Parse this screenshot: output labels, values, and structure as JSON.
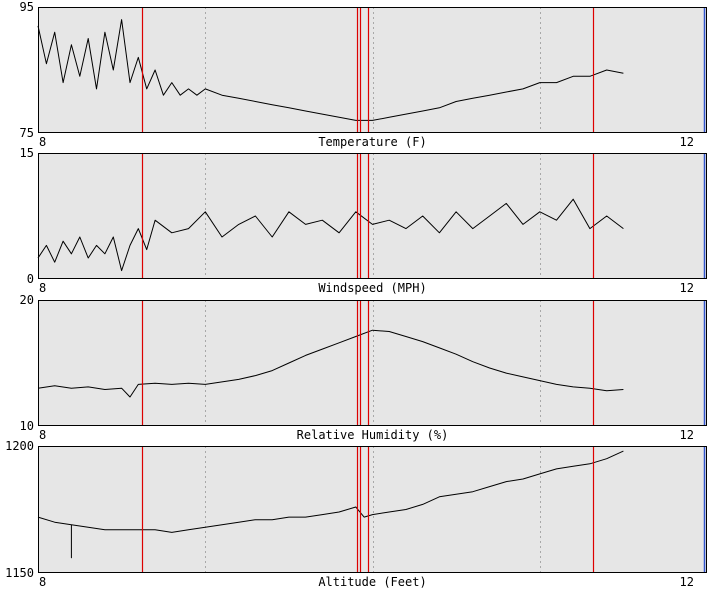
{
  "colors": {
    "plot_background": "#e6e6e6",
    "page_background": "#ffffff",
    "series_line": "#000000",
    "event_marker": "#dd0000",
    "grid_line": "#a8a8a8",
    "right_edge_accent": "#3355cc"
  },
  "event_markers_x": [
    8.623,
    9.905,
    9.925,
    9.975
  ],
  "event_marker_late_x": 11.318,
  "chart_data": [
    {
      "type": "line",
      "title": "",
      "xlabel": "Temperature (F)",
      "ylabel": "",
      "xlim": [
        8,
        12
      ],
      "ylim": [
        75,
        95
      ],
      "x_ticks": [
        "8",
        "12"
      ],
      "y_ticks": [
        "95",
        "75"
      ],
      "grid": {
        "x": [
          9,
          10,
          11
        ],
        "style": "dotted"
      },
      "series": [
        {
          "x": [
            8.0,
            8.05,
            8.1,
            8.15,
            8.2,
            8.25,
            8.3,
            8.35,
            8.4,
            8.45,
            8.5,
            8.55,
            8.6,
            8.65,
            8.7,
            8.75,
            8.8,
            8.85,
            8.9,
            8.95,
            9.0,
            9.1,
            9.2,
            9.3,
            9.4,
            9.5,
            9.6,
            9.7,
            9.8,
            9.9,
            10.0,
            10.1,
            10.2,
            10.3,
            10.4,
            10.5,
            10.6,
            10.7,
            10.8,
            10.9,
            11.0,
            11.1,
            11.2,
            11.3,
            11.4,
            11.5
          ],
          "y": [
            92,
            86,
            91,
            83,
            89,
            84,
            90,
            82,
            91,
            85,
            93,
            83,
            87,
            82,
            85,
            81,
            83,
            81,
            82,
            81,
            82,
            81,
            80.5,
            80,
            79.5,
            79,
            78.5,
            78,
            77.5,
            77,
            77,
            77.5,
            78,
            78.5,
            79,
            80,
            80.5,
            81,
            81.5,
            82,
            83,
            83,
            84,
            84,
            85,
            84.5
          ]
        }
      ]
    },
    {
      "type": "line",
      "title": "",
      "xlabel": "Windspeed (MPH)",
      "ylabel": "",
      "xlim": [
        8,
        12
      ],
      "ylim": [
        0,
        15
      ],
      "x_ticks": [
        "8",
        "12"
      ],
      "y_ticks": [
        "15",
        "0"
      ],
      "grid": {
        "x": [
          9,
          10,
          11
        ],
        "style": "dotted"
      },
      "series": [
        {
          "x": [
            8.0,
            8.05,
            8.1,
            8.15,
            8.2,
            8.25,
            8.3,
            8.35,
            8.4,
            8.45,
            8.5,
            8.55,
            8.6,
            8.65,
            8.7,
            8.8,
            8.9,
            9.0,
            9.1,
            9.2,
            9.3,
            9.4,
            9.5,
            9.6,
            9.7,
            9.8,
            9.9,
            10.0,
            10.1,
            10.2,
            10.3,
            10.4,
            10.5,
            10.6,
            10.7,
            10.8,
            10.9,
            11.0,
            11.1,
            11.2,
            11.3,
            11.4,
            11.5
          ],
          "y": [
            2.5,
            4,
            2,
            4.5,
            3,
            5,
            2.5,
            4,
            3,
            5,
            1,
            4,
            6,
            3.5,
            7,
            5.5,
            6,
            8,
            5,
            6.5,
            7.5,
            5,
            8,
            6.5,
            7,
            5.5,
            8,
            6.5,
            7,
            6,
            7.5,
            5.5,
            8,
            6,
            7.5,
            9,
            6.5,
            8,
            7,
            9.5,
            6,
            7.5,
            6
          ]
        }
      ]
    },
    {
      "type": "line",
      "title": "",
      "xlabel": "Relative Humidity (%)",
      "ylabel": "",
      "xlim": [
        8,
        12
      ],
      "ylim": [
        10,
        20
      ],
      "x_ticks": [
        "8",
        "12"
      ],
      "y_ticks": [
        "20",
        "10"
      ],
      "grid": {
        "x": [
          9,
          10,
          11
        ],
        "style": "dotted"
      },
      "series": [
        {
          "x": [
            8.0,
            8.1,
            8.2,
            8.3,
            8.4,
            8.5,
            8.55,
            8.6,
            8.7,
            8.8,
            8.9,
            9.0,
            9.1,
            9.2,
            9.3,
            9.4,
            9.5,
            9.6,
            9.7,
            9.8,
            9.9,
            10.0,
            10.1,
            10.2,
            10.3,
            10.4,
            10.5,
            10.6,
            10.7,
            10.8,
            10.9,
            11.0,
            11.1,
            11.2,
            11.3,
            11.4,
            11.5
          ],
          "y": [
            13,
            13.2,
            13,
            13.1,
            12.9,
            13,
            12.3,
            13.3,
            13.4,
            13.3,
            13.4,
            13.3,
            13.5,
            13.7,
            14,
            14.4,
            15,
            15.6,
            16.1,
            16.6,
            17.1,
            17.6,
            17.5,
            17.1,
            16.7,
            16.2,
            15.7,
            15.1,
            14.6,
            14.2,
            13.9,
            13.6,
            13.3,
            13.1,
            13,
            12.8,
            12.9
          ]
        }
      ]
    },
    {
      "type": "line",
      "title": "",
      "xlabel": "Altitude (Feet)",
      "ylabel": "",
      "xlim": [
        8,
        12
      ],
      "ylim": [
        1150,
        1200
      ],
      "x_ticks": [
        "8",
        "12"
      ],
      "y_ticks": [
        "1200",
        "1150"
      ],
      "grid": {
        "x": [
          9,
          10,
          11
        ],
        "style": "dotted"
      },
      "series": [
        {
          "x": [
            8.0,
            8.1,
            8.2,
            8.2,
            8.2,
            8.3,
            8.4,
            8.5,
            8.6,
            8.7,
            8.8,
            8.9,
            9.0,
            9.1,
            9.2,
            9.3,
            9.4,
            9.5,
            9.6,
            9.7,
            9.8,
            9.9,
            9.95,
            10.0,
            10.1,
            10.2,
            10.3,
            10.4,
            10.5,
            10.6,
            10.7,
            10.8,
            10.9,
            11.0,
            11.1,
            11.2,
            11.3,
            11.4,
            11.5
          ],
          "y": [
            1172,
            1170,
            1169,
            1156,
            1169,
            1168,
            1167,
            1167,
            1167,
            1167,
            1166,
            1167,
            1168,
            1169,
            1170,
            1171,
            1171,
            1172,
            1172,
            1173,
            1174,
            1176,
            1172,
            1173,
            1174,
            1175,
            1177,
            1180,
            1181,
            1182,
            1184,
            1186,
            1187,
            1189,
            1191,
            1192,
            1193,
            1195,
            1198
          ]
        }
      ]
    }
  ]
}
